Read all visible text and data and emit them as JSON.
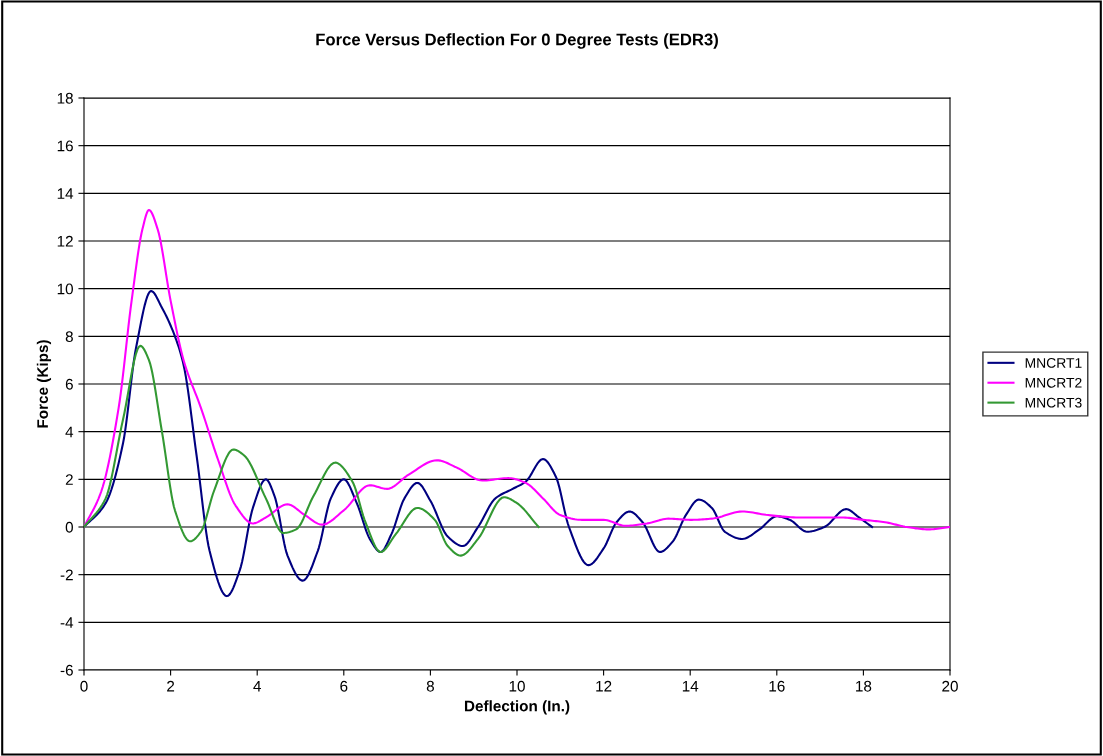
{
  "chart_data": {
    "type": "line",
    "title": "Force Versus Deflection For 0 Degree Tests (EDR3)",
    "xlabel": "Deflection (In.)",
    "ylabel": "Force (Kips)",
    "xlim": [
      0,
      20
    ],
    "xticks": [
      0,
      2,
      4,
      6,
      8,
      10,
      12,
      14,
      16,
      18,
      20
    ],
    "ylim": [
      -6,
      18
    ],
    "yticks": [
      -6,
      -4,
      -2,
      0,
      2,
      4,
      6,
      8,
      10,
      12,
      14,
      16,
      18
    ],
    "grid": "y",
    "legend": "right",
    "marker": "none",
    "line_style": "solid",
    "series": [
      {
        "name": "MNCRT1",
        "color": "#000080",
        "x": [
          0,
          0.5,
          0.9,
          1.2,
          1.55,
          1.8,
          2.1,
          2.3,
          2.6,
          2.9,
          3.3,
          3.6,
          3.9,
          4.2,
          4.4,
          4.7,
          5.05,
          5.4,
          5.7,
          6.0,
          6.3,
          6.6,
          6.85,
          7.1,
          7.4,
          7.7,
          8.0,
          8.4,
          8.75,
          9.1,
          9.5,
          9.9,
          10.2,
          10.6,
          10.9,
          11.2,
          11.65,
          12.0,
          12.3,
          12.6,
          12.9,
          13.3,
          13.6,
          13.9,
          14.2,
          14.5,
          14.8,
          15.2,
          15.6,
          16.0,
          16.3,
          16.7,
          17.1,
          17.6,
          17.9,
          18.2
        ],
        "values": [
          0,
          1.0,
          3.5,
          7.5,
          9.9,
          9.2,
          8,
          6.8,
          3,
          -1.0,
          -2.9,
          -1.8,
          0.8,
          2.0,
          1.3,
          -1.2,
          -2.25,
          -1.0,
          1.2,
          2.0,
          1.0,
          -0.5,
          -1.05,
          -0.3,
          1.2,
          1.85,
          1.1,
          -0.4,
          -0.8,
          0.0,
          1.2,
          1.6,
          1.9,
          2.85,
          2.1,
          0.0,
          -1.6,
          -0.9,
          0.2,
          0.65,
          0.2,
          -1.05,
          -0.6,
          0.5,
          1.15,
          0.8,
          -0.2,
          -0.5,
          -0.1,
          0.45,
          0.3,
          -0.2,
          0.0,
          0.75,
          0.4,
          0.0
        ]
      },
      {
        "name": "MNCRT2",
        "color": "#ff00ff",
        "x": [
          0,
          0.4,
          0.8,
          1.1,
          1.35,
          1.5,
          1.7,
          2.0,
          2.3,
          2.7,
          3.1,
          3.5,
          3.9,
          4.2,
          4.7,
          5.1,
          5.5,
          6.0,
          6.6,
          7.0,
          7.5,
          8.15,
          8.6,
          9.2,
          9.8,
          10.2,
          10.6,
          11.0,
          11.5,
          12.0,
          12.5,
          13.0,
          13.5,
          14.0,
          14.5,
          15.2,
          15.8,
          16.5,
          17.5,
          18.0,
          18.5,
          19.0,
          19.5,
          20.0
        ],
        "values": [
          0,
          1.5,
          5,
          9.5,
          12.5,
          13.3,
          12.5,
          9.5,
          7,
          5,
          2.8,
          0.9,
          0.15,
          0.4,
          0.95,
          0.5,
          0.1,
          0.7,
          1.75,
          1.6,
          2.2,
          2.8,
          2.5,
          1.95,
          2.05,
          1.85,
          1.2,
          0.5,
          0.3,
          0.3,
          0.05,
          0.15,
          0.35,
          0.3,
          0.35,
          0.65,
          0.5,
          0.4,
          0.4,
          0.3,
          0.2,
          0.0,
          -0.1,
          0.0
        ]
      },
      {
        "name": "MNCRT3",
        "color": "#339933",
        "x": [
          0,
          0.5,
          0.9,
          1.3,
          1.5,
          1.8,
          2.1,
          2.45,
          2.7,
          3.0,
          3.45,
          3.7,
          4.2,
          4.6,
          4.9,
          5.3,
          5.8,
          6.2,
          6.5,
          6.85,
          7.2,
          7.7,
          8.1,
          8.4,
          8.7,
          9.1,
          9.7,
          10.0,
          10.5
        ],
        "values": [
          0,
          1.2,
          4.5,
          7.6,
          7.0,
          4.0,
          0.7,
          -0.6,
          -0.2,
          1.5,
          3.25,
          3.0,
          1.2,
          -0.25,
          -0.1,
          1.3,
          2.7,
          1.9,
          0.2,
          -1.05,
          -0.3,
          0.8,
          0.3,
          -0.8,
          -1.2,
          -0.5,
          1.25,
          1.0,
          0.0
        ]
      }
    ]
  }
}
